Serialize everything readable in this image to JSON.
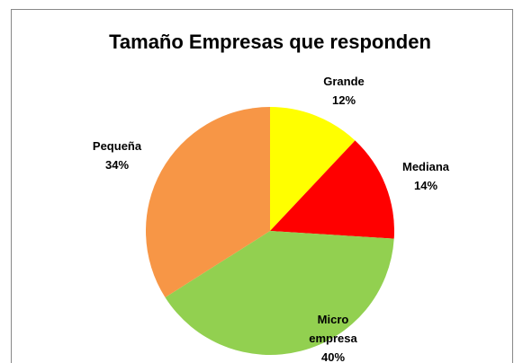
{
  "chart_data": {
    "type": "pie",
    "title": "Tamaño Empresas que responden",
    "categories": [
      "Grande",
      "Mediana",
      "Micro empresa",
      "Pequeña"
    ],
    "values": [
      12,
      14,
      40,
      34
    ],
    "value_labels": [
      "12%",
      "14%",
      "40%",
      "34%"
    ],
    "colors": [
      "#ffff00",
      "#ff0000",
      "#92d050",
      "#f79646"
    ]
  }
}
